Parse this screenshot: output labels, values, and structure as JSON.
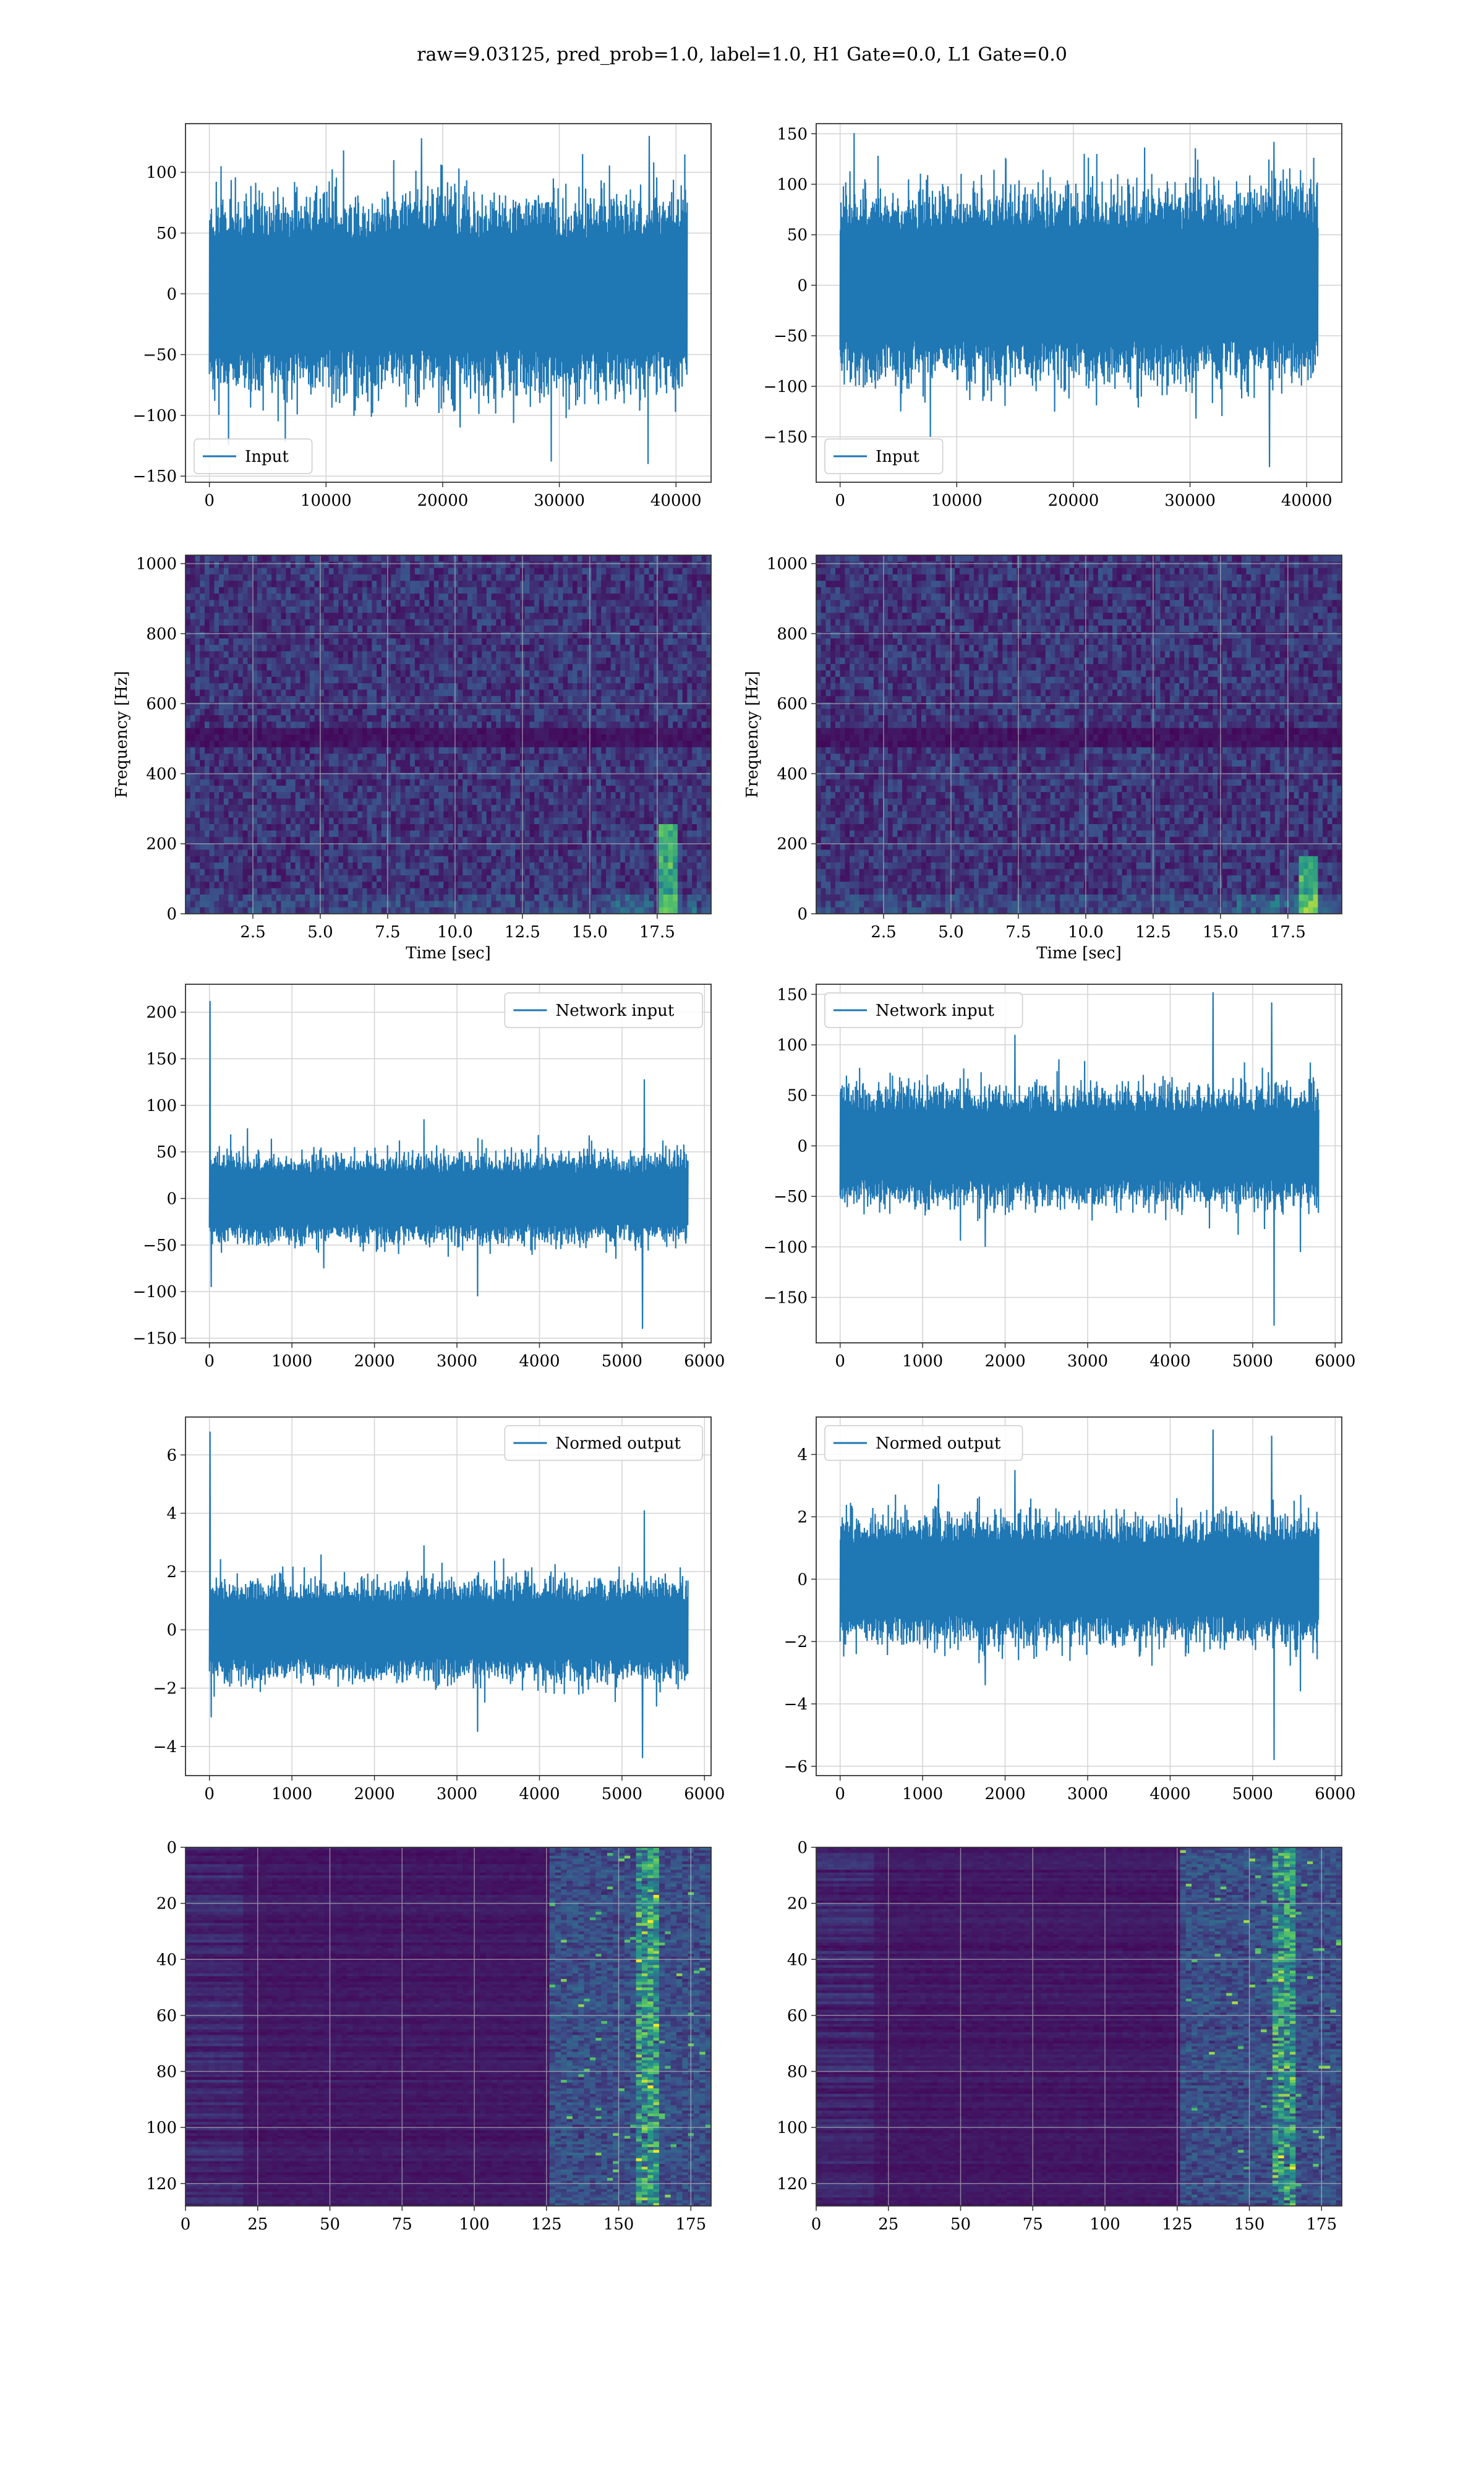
{
  "figure": {
    "title": "raw=9.03125, pred_prob=1.0, label=1.0, H1 Gate=0.0, L1 Gate=0.0"
  },
  "colors": {
    "line": "#1f77b4",
    "grid": "#d3d3d3",
    "axes": "#333333",
    "viridis_dark": "#440154",
    "viridis_mid": "#3b528b",
    "viridis_teal": "#21918c",
    "viridis_green": "#5ec962",
    "viridis_yellow": "#fde725"
  },
  "chart_data": [
    {
      "id": "input-h1",
      "type": "line",
      "column": "left",
      "title": "",
      "xlabel": "",
      "ylabel": "",
      "legend": {
        "label": "Input",
        "placement": "lower-left"
      },
      "xlim": [
        -2048,
        43008
      ],
      "ylim": [
        -155,
        140
      ],
      "xticks": [
        0,
        10000,
        20000,
        30000,
        40000
      ],
      "xtick_labels": [
        "0",
        "10000",
        "20000",
        "30000",
        "40000"
      ],
      "yticks": [
        -150,
        -100,
        -50,
        0,
        50,
        100
      ],
      "ytick_labels": [
        "−150",
        "−100",
        "−50",
        "0",
        "50",
        "100"
      ],
      "series": [
        {
          "x_range": [
            0,
            40960
          ],
          "envelope": [
            -75,
            75
          ],
          "peaks": [
            {
              "x": 1000,
              "y": 105
            },
            {
              "x": 11500,
              "y": 118
            },
            {
              "x": 18200,
              "y": 128
            },
            {
              "x": 32000,
              "y": 115
            },
            {
              "x": 37700,
              "y": 130
            },
            {
              "x": 6500,
              "y": -122
            },
            {
              "x": 21500,
              "y": -110
            },
            {
              "x": 29300,
              "y": -138
            },
            {
              "x": 37600,
              "y": -140
            }
          ]
        }
      ]
    },
    {
      "id": "input-l1",
      "type": "line",
      "column": "right",
      "title": "",
      "xlabel": "",
      "ylabel": "",
      "legend": {
        "label": "Input",
        "placement": "lower-left"
      },
      "xlim": [
        -2048,
        43008
      ],
      "ylim": [
        -195,
        160
      ],
      "xticks": [
        0,
        10000,
        20000,
        30000,
        40000
      ],
      "xtick_labels": [
        "0",
        "10000",
        "20000",
        "30000",
        "40000"
      ],
      "yticks": [
        -150,
        -100,
        -50,
        0,
        50,
        100,
        150
      ],
      "ytick_labels": [
        "−150",
        "−100",
        "−50",
        "0",
        "50",
        "100",
        "150"
      ],
      "series": [
        {
          "x_range": [
            0,
            40960
          ],
          "envelope": [
            -90,
            90
          ],
          "peaks": [
            {
              "x": 14200,
              "y": 125
            },
            {
              "x": 22000,
              "y": 130
            },
            {
              "x": 37200,
              "y": 142
            },
            {
              "x": 30500,
              "y": -132
            },
            {
              "x": 36800,
              "y": -180
            },
            {
              "x": 5200,
              "y": -125
            }
          ]
        }
      ]
    },
    {
      "id": "spectrogram-h1",
      "type": "heatmap",
      "column": "left",
      "title": "",
      "xlabel": "Time [sec]",
      "ylabel": "Frequency [Hz]",
      "xlim": [
        0,
        19.5
      ],
      "ylim": [
        0,
        1024
      ],
      "xticks": [
        2.5,
        5.0,
        7.5,
        10.0,
        12.5,
        15.0,
        17.5
      ],
      "xtick_labels": [
        "2.5",
        "5.0",
        "7.5",
        "10.0",
        "12.5",
        "15.0",
        "17.5"
      ],
      "yticks": [
        0,
        200,
        400,
        600,
        800,
        1000
      ],
      "ytick_labels": [
        "0",
        "200",
        "400",
        "600",
        "800",
        "1000"
      ],
      "features": {
        "dark_band_hz": 500,
        "chirp_time": 17.9,
        "chirp_max_hz": 250
      }
    },
    {
      "id": "spectrogram-l1",
      "type": "heatmap",
      "column": "right",
      "title": "",
      "xlabel": "Time [sec]",
      "ylabel": "Frequency [Hz]",
      "xlim": [
        0,
        19.5
      ],
      "ylim": [
        0,
        1024
      ],
      "xticks": [
        2.5,
        5.0,
        7.5,
        10.0,
        12.5,
        15.0,
        17.5
      ],
      "xtick_labels": [
        "2.5",
        "5.0",
        "7.5",
        "10.0",
        "12.5",
        "15.0",
        "17.5"
      ],
      "yticks": [
        0,
        200,
        400,
        600,
        800,
        1000
      ],
      "ytick_labels": [
        "0",
        "200",
        "400",
        "600",
        "800",
        "1000"
      ],
      "features": {
        "dark_band_hz": 500,
        "chirp_time": 18.2,
        "chirp_max_hz": 160
      }
    },
    {
      "id": "network-input-h1",
      "type": "line",
      "column": "left",
      "title": "",
      "xlabel": "",
      "ylabel": "",
      "legend": {
        "label": "Network input",
        "placement": "upper-right"
      },
      "xlim": [
        -290,
        6080
      ],
      "ylim": [
        -155,
        230
      ],
      "xticks": [
        0,
        1000,
        2000,
        3000,
        4000,
        5000,
        6000
      ],
      "xtick_labels": [
        "0",
        "1000",
        "2000",
        "3000",
        "4000",
        "5000",
        "6000"
      ],
      "yticks": [
        -150,
        -100,
        -50,
        0,
        50,
        100,
        150,
        200
      ],
      "ytick_labels": [
        "−150",
        "−100",
        "−50",
        "0",
        "50",
        "100",
        "150",
        "200"
      ],
      "series": [
        {
          "x_range": [
            0,
            5800
          ],
          "envelope": [
            -45,
            45
          ],
          "peaks": [
            {
              "x": 8,
              "y": 212
            },
            {
              "x": 5270,
              "y": 128
            },
            {
              "x": 2600,
              "y": 85
            },
            {
              "x": 5250,
              "y": -140
            },
            {
              "x": 20,
              "y": -95
            },
            {
              "x": 3250,
              "y": -105
            }
          ]
        }
      ]
    },
    {
      "id": "network-input-l1",
      "type": "line",
      "column": "right",
      "title": "",
      "xlabel": "",
      "ylabel": "",
      "legend": {
        "label": "Network input",
        "placement": "upper-left"
      },
      "xlim": [
        -290,
        6080
      ],
      "ylim": [
        -195,
        160
      ],
      "xticks": [
        0,
        1000,
        2000,
        3000,
        4000,
        5000,
        6000
      ],
      "xtick_labels": [
        "0",
        "1000",
        "2000",
        "3000",
        "4000",
        "5000",
        "6000"
      ],
      "yticks": [
        -150,
        -100,
        -50,
        0,
        50,
        100,
        150
      ],
      "ytick_labels": [
        "−150",
        "−100",
        "−50",
        "0",
        "50",
        "100",
        "150"
      ],
      "series": [
        {
          "x_range": [
            0,
            5800
          ],
          "envelope": [
            -55,
            55
          ],
          "peaks": [
            {
              "x": 4520,
              "y": 152
            },
            {
              "x": 5230,
              "y": 142
            },
            {
              "x": 2120,
              "y": 110
            },
            {
              "x": 5260,
              "y": -178
            },
            {
              "x": 5580,
              "y": -105
            },
            {
              "x": 1760,
              "y": -100
            }
          ]
        }
      ]
    },
    {
      "id": "normed-output-h1",
      "type": "line",
      "column": "left",
      "title": "",
      "xlabel": "",
      "ylabel": "",
      "legend": {
        "label": "Normed output",
        "placement": "upper-right"
      },
      "xlim": [
        -290,
        6080
      ],
      "ylim": [
        -5,
        7.3
      ],
      "xticks": [
        0,
        1000,
        2000,
        3000,
        4000,
        5000,
        6000
      ],
      "xtick_labels": [
        "0",
        "1000",
        "2000",
        "3000",
        "4000",
        "5000",
        "6000"
      ],
      "yticks": [
        -4,
        -2,
        0,
        2,
        4,
        6
      ],
      "ytick_labels": [
        "−4",
        "−2",
        "0",
        "2",
        "4",
        "6"
      ],
      "series": [
        {
          "x_range": [
            0,
            5800
          ],
          "envelope": [
            -1.6,
            1.6
          ],
          "peaks": [
            {
              "x": 8,
              "y": 6.8
            },
            {
              "x": 5270,
              "y": 4.1
            },
            {
              "x": 2600,
              "y": 2.9
            },
            {
              "x": 5250,
              "y": -4.4
            },
            {
              "x": 20,
              "y": -3.0
            },
            {
              "x": 3250,
              "y": -3.5
            }
          ]
        }
      ]
    },
    {
      "id": "normed-output-l1",
      "type": "line",
      "column": "right",
      "title": "",
      "xlabel": "",
      "ylabel": "",
      "legend": {
        "label": "Normed output",
        "placement": "upper-left"
      },
      "xlim": [
        -290,
        6080
      ],
      "ylim": [
        -6.3,
        5.2
      ],
      "xticks": [
        0,
        1000,
        2000,
        3000,
        4000,
        5000,
        6000
      ],
      "xtick_labels": [
        "0",
        "1000",
        "2000",
        "3000",
        "4000",
        "5000",
        "6000"
      ],
      "yticks": [
        -6,
        -4,
        -2,
        0,
        2,
        4
      ],
      "ytick_labels": [
        "−6",
        "−4",
        "−2",
        "0",
        "2",
        "4"
      ],
      "series": [
        {
          "x_range": [
            0,
            5800
          ],
          "envelope": [
            -1.9,
            1.9
          ],
          "peaks": [
            {
              "x": 4520,
              "y": 4.8
            },
            {
              "x": 5230,
              "y": 4.6
            },
            {
              "x": 2120,
              "y": 3.5
            },
            {
              "x": 5260,
              "y": -5.8
            },
            {
              "x": 5580,
              "y": -3.6
            },
            {
              "x": 1760,
              "y": -3.4
            }
          ]
        }
      ]
    },
    {
      "id": "feature-map-h1",
      "type": "heatmap",
      "column": "left",
      "title": "",
      "xlabel": "",
      "ylabel": "",
      "xlim": [
        0,
        182
      ],
      "ylim": [
        128,
        0
      ],
      "xticks": [
        0,
        25,
        50,
        75,
        100,
        125,
        150,
        175
      ],
      "xtick_labels": [
        "0",
        "25",
        "50",
        "75",
        "100",
        "125",
        "150",
        "175"
      ],
      "yticks": [
        0,
        20,
        40,
        60,
        80,
        100,
        120
      ],
      "ytick_labels": [
        "0",
        "20",
        "40",
        "60",
        "80",
        "100",
        "120"
      ],
      "features": {
        "active_from_col": 125,
        "hot_col": 160
      }
    },
    {
      "id": "feature-map-l1",
      "type": "heatmap",
      "column": "right",
      "title": "",
      "xlabel": "",
      "ylabel": "",
      "xlim": [
        0,
        182
      ],
      "ylim": [
        128,
        0
      ],
      "xticks": [
        0,
        25,
        50,
        75,
        100,
        125,
        150,
        175
      ],
      "xtick_labels": [
        "0",
        "25",
        "50",
        "75",
        "100",
        "125",
        "150",
        "175"
      ],
      "yticks": [
        0,
        20,
        40,
        60,
        80,
        100,
        120
      ],
      "ytick_labels": [
        "0",
        "20",
        "40",
        "60",
        "80",
        "100",
        "120"
      ],
      "features": {
        "active_from_col": 125,
        "hot_col": 162
      }
    }
  ]
}
